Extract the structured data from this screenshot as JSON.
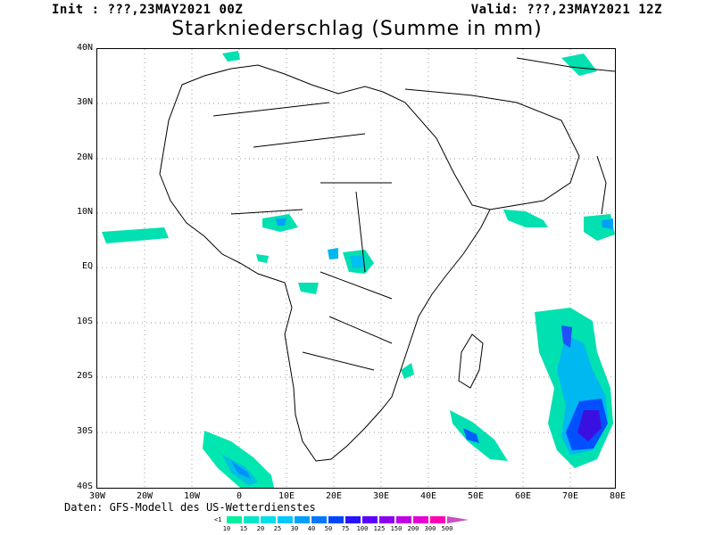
{
  "header": {
    "init": "Init : ???,23MAY2021 00Z",
    "valid": "Valid: ???,23MAY2021 12Z",
    "title": "Starkniederschlag (Summe in mm)"
  },
  "map": {
    "lat_labels": [
      "40N",
      "30N",
      "20N",
      "10N",
      "EQ",
      "10S",
      "20S",
      "30S",
      "40S"
    ],
    "lon_labels": [
      "30W",
      "20W",
      "10W",
      "0",
      "10E",
      "20E",
      "30E",
      "40E",
      "50E",
      "60E",
      "70E",
      "80E"
    ],
    "region": {
      "lon_range": [
        -30,
        80
      ],
      "lat_range": [
        -40,
        40
      ]
    },
    "grid": "dotted",
    "precip_colors": [
      "#00f0a0",
      "#00e6d0",
      "#00d0ff",
      "#00a6ff",
      "#0064ff",
      "#0028ff",
      "#2800e6",
      "#5a00e6",
      "#8c00e6",
      "#be00dc",
      "#dc00c8",
      "#f000b4",
      "#ff0096",
      "#c864c8"
    ]
  },
  "credit": "Daten: GFS-Modell des US-Wetterdienstes",
  "legend": {
    "under_label": "<1",
    "labels": [
      "10",
      "15",
      "20",
      "25",
      "30",
      "40",
      "50",
      "75",
      "100",
      "125",
      "150",
      "200",
      "300",
      "500"
    ],
    "colors": [
      "#00f0a0",
      "#00e6c8",
      "#00e0e6",
      "#00c8ff",
      "#00a0ff",
      "#0078ff",
      "#0046ff",
      "#2814ff",
      "#5a00ff",
      "#8c00f0",
      "#be00e6",
      "#e600d2",
      "#ff00b4",
      "#c850c8"
    ]
  }
}
